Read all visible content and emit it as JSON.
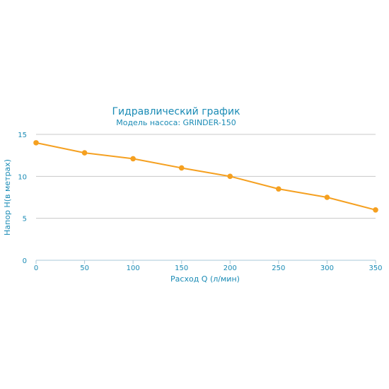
{
  "colors": {
    "text": "#1a8bb5",
    "series": "#f5a020",
    "grid": "#c8c8c8",
    "axis": "#a8c8d8"
  },
  "chart_data": {
    "type": "line",
    "title": "Гидравлический график",
    "subtitle": "Модель насоса: GRINDER-150",
    "xlabel": "Расход Q (л/мин)",
    "ylabel": "Напор H(в метрах)",
    "x": [
      0,
      50,
      100,
      150,
      200,
      250,
      300,
      350
    ],
    "series": [
      {
        "values": [
          14,
          12.8,
          12.1,
          11,
          10,
          8.5,
          7.5,
          6
        ]
      }
    ],
    "xlim": [
      0,
      350
    ],
    "ylim": [
      0,
      15
    ],
    "xticks": [
      0,
      50,
      100,
      150,
      200,
      250,
      300,
      350
    ],
    "yticks": [
      0,
      5,
      10,
      15
    ],
    "grid": "horizontal",
    "markers": true
  }
}
